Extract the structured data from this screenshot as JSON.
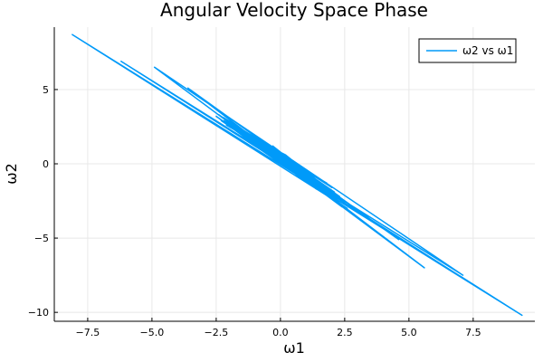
{
  "chart_data": {
    "type": "line",
    "title": "Angular Velocity Space Phase",
    "xlabel": "ω1",
    "ylabel": "ω2",
    "xlim": [
      -8.8,
      9.9
    ],
    "ylim": [
      -10.6,
      9.2
    ],
    "xticks": [
      -7.5,
      -5.0,
      -2.5,
      0.0,
      2.5,
      5.0,
      7.5
    ],
    "xtick_labels": [
      "−7.5",
      "−5.0",
      "−2.5",
      "0.0",
      "2.5",
      "5.0",
      "7.5"
    ],
    "yticks": [
      -10,
      -5,
      0,
      5
    ],
    "ytick_labels": [
      "−10",
      "−5",
      "0",
      "5"
    ],
    "grid": true,
    "legend_position": "top-right",
    "colors": {
      "series": "#009af9",
      "axis": "#000000",
      "grid": "#e8e8e8"
    },
    "series": [
      {
        "name": "ω2 vs ω1",
        "x": [
          0.0,
          1.3,
          -1.6,
          2.0,
          -2.2,
          0.6,
          1.5,
          -0.8,
          2.3,
          -1.9,
          1.0,
          -0.4,
          2.1,
          -2.4,
          0.9,
          2.5,
          -1.2,
          1.8,
          -2.0,
          0.3,
          2.4,
          -1.5,
          1.2,
          -0.9,
          2.2,
          -2.3,
          0.8,
          4.6,
          -3.6,
          5.6,
          -4.9,
          7.1,
          -6.2,
          9.4,
          -8.1,
          2.6,
          -2.5,
          1.4,
          -1.8,
          0.5,
          2.0,
          -1.0,
          1.7,
          -2.1,
          0.2,
          2.5,
          -1.4,
          0.7,
          -0.3,
          1.6,
          -2.2,
          1.1,
          -0.6,
          0.0
        ],
        "y": [
          0.5,
          -0.9,
          2.4,
          -1.6,
          3.1,
          0.0,
          -1.2,
          1.6,
          -2.2,
          2.8,
          -0.6,
          1.1,
          -1.9,
          3.3,
          -0.7,
          -2.5,
          1.8,
          -1.3,
          2.5,
          0.4,
          -2.9,
          2.1,
          -1.0,
          1.4,
          -2.4,
          2.9,
          -0.4,
          -5.1,
          5.1,
          -7.0,
          6.5,
          -7.5,
          6.9,
          -10.2,
          8.7,
          -3.0,
          3.2,
          -1.7,
          2.3,
          0.2,
          -2.0,
          1.9,
          -1.2,
          2.6,
          0.6,
          -2.6,
          1.7,
          -0.8,
          1.2,
          -1.4,
          2.9,
          -1.1,
          1.0,
          0.3
        ]
      }
    ]
  }
}
